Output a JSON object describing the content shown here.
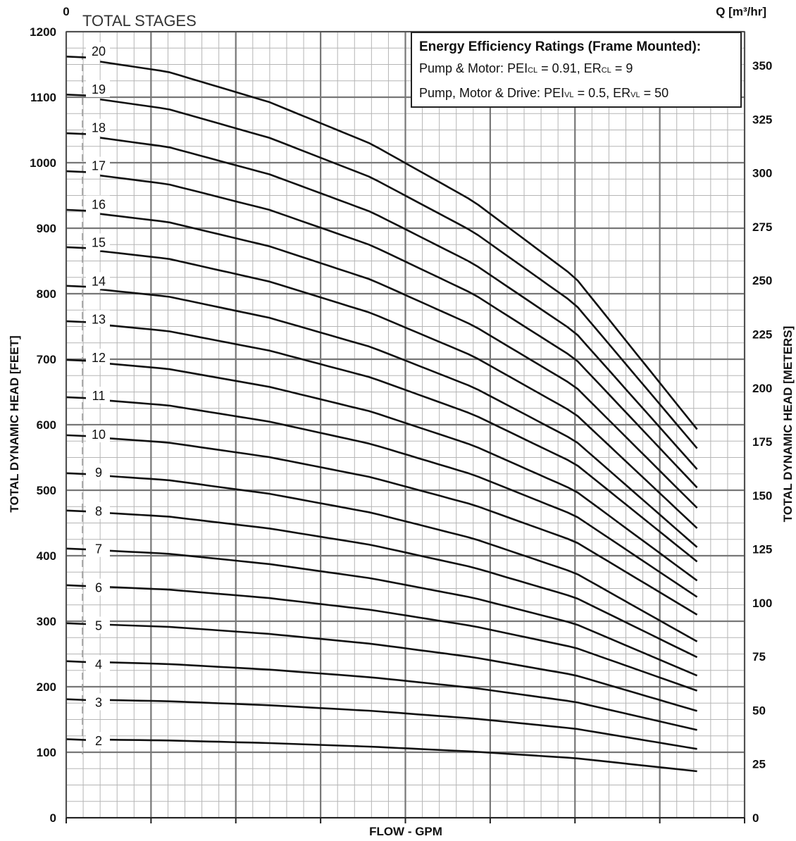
{
  "chart_data": {
    "type": "line",
    "title": "",
    "xlabel": "FLOW - GPM",
    "ylabel": "TOTAL DYNAMIC HEAD [FEET]",
    "ylabel_right": "TOTAL DYNAMIC HEAD [METERS]",
    "xlabel_top": "Q [m³/hr]",
    "stages_header": "TOTAL STAGES",
    "xlim": [
      0,
      20
    ],
    "ylim": [
      0,
      1200
    ],
    "x_ticks_top": [
      "0",
      "5",
      "10",
      "15"
    ],
    "x_ticks_top_values": [
      0,
      5,
      10,
      15
    ],
    "y_ticks_left": [
      "0",
      "100",
      "200",
      "300",
      "400",
      "500",
      "600",
      "700",
      "800",
      "900",
      "1000",
      "1100",
      "1200"
    ],
    "y_ticks_right": [
      "0",
      "25",
      "50",
      "75",
      "100",
      "125",
      "150",
      "175",
      "200",
      "225",
      "250",
      "275",
      "300",
      "325",
      "350"
    ],
    "grid": true,
    "curve_shape": {
      "x": [
        0,
        3,
        6,
        9,
        12,
        15,
        18.6
      ],
      "rel_head": [
        1.0,
        0.98,
        0.94,
        0.885,
        0.81,
        0.71,
        0.51
      ]
    },
    "stage_label_y": [
      117,
      176,
      234,
      293,
      351,
      410,
      468,
      527,
      585,
      644,
      702,
      761,
      819,
      878,
      936,
      995,
      1053,
      1112,
      1170
    ],
    "series": [
      {
        "name": "2",
        "y_at_0": 120,
        "y_at_end": 71
      },
      {
        "name": "3",
        "y_at_0": 181,
        "y_at_end": 105
      },
      {
        "name": "4",
        "y_at_0": 239,
        "y_at_end": 134
      },
      {
        "name": "5",
        "y_at_0": 297,
        "y_at_end": 163
      },
      {
        "name": "6",
        "y_at_0": 355,
        "y_at_end": 194
      },
      {
        "name": "7",
        "y_at_0": 411,
        "y_at_end": 217
      },
      {
        "name": "8",
        "y_at_0": 469,
        "y_at_end": 245
      },
      {
        "name": "9",
        "y_at_0": 526,
        "y_at_end": 269
      },
      {
        "name": "10",
        "y_at_0": 584,
        "y_at_end": 310
      },
      {
        "name": "11",
        "y_at_0": 642,
        "y_at_end": 337
      },
      {
        "name": "12",
        "y_at_0": 699,
        "y_at_end": 362
      },
      {
        "name": "13",
        "y_at_0": 758,
        "y_at_end": 391
      },
      {
        "name": "14",
        "y_at_0": 812,
        "y_at_end": 413
      },
      {
        "name": "15",
        "y_at_0": 871,
        "y_at_end": 442
      },
      {
        "name": "16",
        "y_at_0": 928,
        "y_at_end": 473
      },
      {
        "name": "17",
        "y_at_0": 987,
        "y_at_end": 504
      },
      {
        "name": "18",
        "y_at_0": 1045,
        "y_at_end": 532
      },
      {
        "name": "19",
        "y_at_0": 1104,
        "y_at_end": 564
      },
      {
        "name": "20",
        "y_at_0": 1162,
        "y_at_end": 593
      }
    ]
  },
  "legend": {
    "title": "Energy Efficiency Ratings (Frame Mounted):",
    "row1_prefix": "Pump & Motor:",
    "row1_pei": "PEI",
    "row1_pei_sub": "CL",
    "row1_pei_val": "= 0.91,",
    "row1_er": "ER",
    "row1_er_sub": "CL",
    "row1_er_val": "= 9",
    "row2_prefix": "Pump, Motor & Drive:",
    "row2_pei": "PEI",
    "row2_pei_sub": "VL",
    "row2_pei_val": "= 0.5,",
    "row2_er": "ER",
    "row2_er_sub": "VL",
    "row2_er_val": "= 50"
  }
}
